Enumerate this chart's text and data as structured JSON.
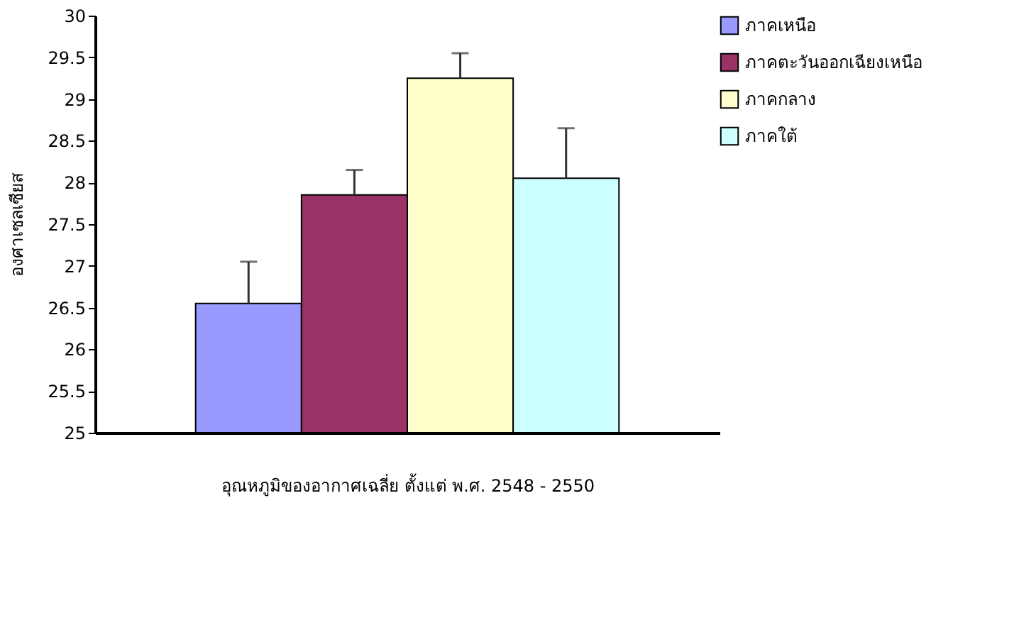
{
  "chart_data": {
    "type": "bar",
    "xlabel": "อุณหภูมิของอากาศเฉลี่ย ตั้งแต่ พ.ศ. 2548 - 2550",
    "ylabel": "องศาเซลเซียส",
    "categories": [
      null
    ],
    "series": [
      {
        "name": "ภาคเหนือ",
        "color": "#9999ff",
        "values": [
          26.55
        ],
        "errors": [
          [
            26.55,
            27.05
          ]
        ]
      },
      {
        "name": "ภาคตะวันออกเฉียงเหนือ",
        "color": "#993366",
        "values": [
          27.85
        ],
        "errors": [
          [
            27.85,
            28.15
          ]
        ]
      },
      {
        "name": "ภาคกลาง",
        "color": "#ffffcc",
        "values": [
          29.25
        ],
        "errors": [
          [
            29.25,
            29.55
          ]
        ]
      },
      {
        "name": "ภาคใต้",
        "color": "#ccffff",
        "values": [
          28.05
        ],
        "errors": [
          [
            28.05,
            28.65
          ]
        ]
      }
    ],
    "ylim": [
      25,
      30
    ],
    "yticks": [
      25,
      25.5,
      26,
      26.5,
      27,
      27.5,
      28,
      28.5,
      29,
      29.5,
      30
    ],
    "grid": false,
    "legend": "top right"
  }
}
